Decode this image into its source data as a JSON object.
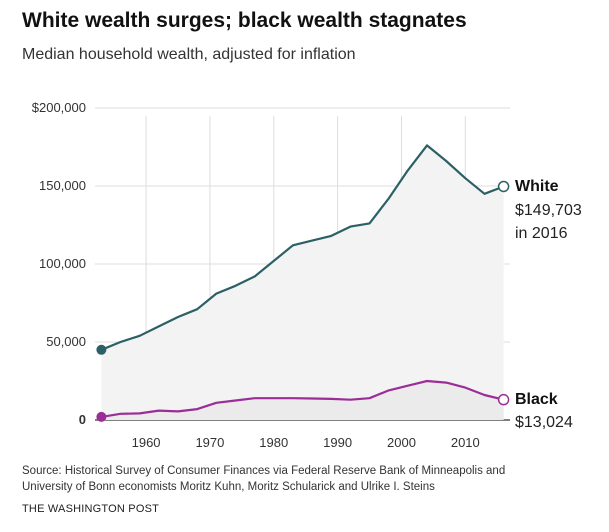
{
  "title": "White wealth surges; black wealth stagnates",
  "subtitle": "Median household wealth, adjusted for inflation",
  "source_line1": "Source: Historical Survey of Consumer Finances via Federal Reserve Bank of Minneapolis and",
  "source_line2": "University of Bonn economists Moritz Kuhn, Moritz Schularick and Ulrike I. Steins",
  "brand": "THE WASHINGTON POST",
  "colors": {
    "white_series": "#2b6066",
    "black_series": "#9b2d97",
    "area_fill": "#f3f3f3",
    "grid": "#dddddd"
  },
  "chart_data": {
    "type": "line",
    "title": "White wealth surges; black wealth stagnates",
    "subtitle": "Median household wealth, adjusted for inflation",
    "xlabel": "",
    "ylabel": "",
    "xlim": [
      1952,
      2017
    ],
    "ylim": [
      0,
      200000
    ],
    "grid": true,
    "y_ticks": [
      {
        "value": 0,
        "label": "0",
        "bold": true
      },
      {
        "value": 50000,
        "label": "50,000",
        "bold": false
      },
      {
        "value": 100000,
        "label": "100,000",
        "bold": false
      },
      {
        "value": 150000,
        "label": "150,000",
        "bold": false
      },
      {
        "value": 200000,
        "label": "$200,000",
        "bold": false
      }
    ],
    "x_ticks": [
      {
        "value": 1960,
        "label": "1960",
        "bold": false
      },
      {
        "value": 1970,
        "label": "1970",
        "bold": false
      },
      {
        "value": 1980,
        "label": "1980",
        "bold": false
      },
      {
        "value": 1990,
        "label": "1990",
        "bold": false
      },
      {
        "value": 2000,
        "label": "2000",
        "bold": false
      },
      {
        "value": 2010,
        "label": "2010",
        "bold": false
      }
    ],
    "series": [
      {
        "name": "White",
        "end_label_value": "$149,703",
        "end_label_year": "in 2016",
        "x": [
          1953,
          1956,
          1959,
          1962,
          1965,
          1968,
          1971,
          1974,
          1977,
          1980,
          1983,
          1986,
          1989,
          1992,
          1995,
          1998,
          2001,
          2004,
          2007,
          2010,
          2013,
          2016
        ],
        "y": [
          45000,
          50000,
          54000,
          60000,
          66000,
          71000,
          81000,
          86000,
          92000,
          102000,
          112000,
          115000,
          118000,
          124000,
          126000,
          142000,
          160000,
          176000,
          166000,
          155000,
          145000,
          149703
        ]
      },
      {
        "name": "Black",
        "end_label_value": "$13,024",
        "x": [
          1953,
          1956,
          1959,
          1962,
          1965,
          1968,
          1971,
          1974,
          1977,
          1980,
          1983,
          1986,
          1989,
          1992,
          1995,
          1998,
          2001,
          2004,
          2007,
          2010,
          2013,
          2016
        ],
        "y": [
          2000,
          4000,
          4200,
          6000,
          5500,
          7000,
          11000,
          12500,
          14000,
          14000,
          14000,
          13800,
          13500,
          13000,
          14000,
          19000,
          22000,
          25000,
          24000,
          20800,
          16000,
          13024
        ]
      }
    ]
  }
}
